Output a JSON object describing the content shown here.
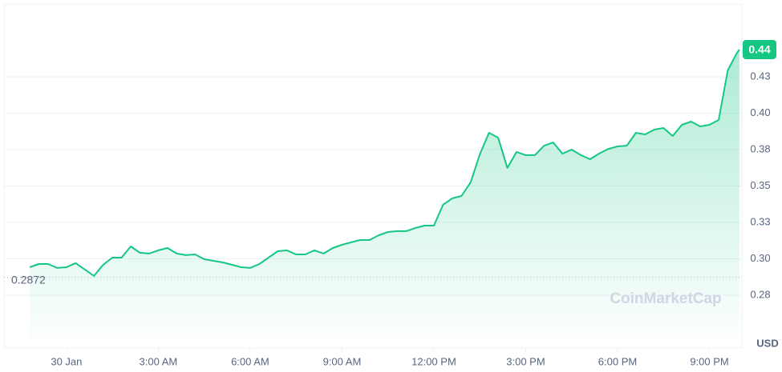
{
  "chart_data": {
    "type": "line",
    "color": "#16c784",
    "down_color": "#ea3943",
    "grid": true,
    "y_axis_label": "USD",
    "watermark": "CoinMarketCap",
    "reference_line": 0.2872,
    "current_price": {
      "value": 0.4437,
      "label": "0.44"
    },
    "xlim": [
      -2.04,
      22.06
    ],
    "ylim": [
      0.2387,
      0.475
    ],
    "xticks": [
      {
        "value": 0,
        "label": "30 Jan"
      },
      {
        "value": 3,
        "label": "3:00 AM"
      },
      {
        "value": 6,
        "label": "6:00 AM"
      },
      {
        "value": 9,
        "label": "9:00 AM"
      },
      {
        "value": 12,
        "label": "12:00 PM"
      },
      {
        "value": 15,
        "label": "3:00 PM"
      },
      {
        "value": 18,
        "label": "6:00 PM"
      },
      {
        "value": 21,
        "label": "9:00 PM"
      }
    ],
    "yticks": [
      {
        "value": 0.275,
        "label": "0.28"
      },
      {
        "value": 0.3,
        "label": "0.30"
      },
      {
        "value": 0.325,
        "label": "0.33"
      },
      {
        "value": 0.35,
        "label": "0.35"
      },
      {
        "value": 0.375,
        "label": "0.38"
      },
      {
        "value": 0.4,
        "label": "0.40"
      },
      {
        "value": 0.425,
        "label": "0.43"
      }
    ],
    "x": [
      -1.2,
      -0.9,
      -0.6,
      -0.3,
      0,
      0.3,
      0.6,
      0.9,
      1.2,
      1.5,
      1.8,
      2.1,
      2.4,
      2.7,
      3,
      3.3,
      3.6,
      3.9,
      4.2,
      4.5,
      4.8,
      5.1,
      5.4,
      5.7,
      6,
      6.3,
      6.6,
      6.9,
      7.2,
      7.5,
      7.8,
      8.1,
      8.4,
      8.7,
      9,
      9.3,
      9.6,
      9.9,
      10.2,
      10.5,
      10.8,
      11.1,
      11.4,
      11.7,
      12,
      12.3,
      12.6,
      12.9,
      13.2,
      13.5,
      13.8,
      14.1,
      14.4,
      14.7,
      15,
      15.3,
      15.6,
      15.9,
      16.2,
      16.5,
      16.8,
      17.1,
      17.4,
      17.7,
      18,
      18.3,
      18.6,
      18.9,
      19.2,
      19.5,
      19.8,
      20.1,
      20.4,
      20.7,
      21,
      21.3,
      21.6,
      21.9,
      21.98
    ],
    "values": [
      0.2942,
      0.2964,
      0.2964,
      0.2937,
      0.2942,
      0.297,
      0.2926,
      0.2882,
      0.2959,
      0.3008,
      0.3008,
      0.3085,
      0.3041,
      0.3036,
      0.3058,
      0.3074,
      0.3036,
      0.3025,
      0.303,
      0.2997,
      0.2986,
      0.2975,
      0.2959,
      0.2942,
      0.2937,
      0.2964,
      0.3008,
      0.3052,
      0.3058,
      0.303,
      0.303,
      0.3058,
      0.3036,
      0.3074,
      0.3096,
      0.3113,
      0.3129,
      0.3129,
      0.3162,
      0.3184,
      0.319,
      0.319,
      0.3212,
      0.3228,
      0.3228,
      0.3371,
      0.3415,
      0.3431,
      0.3525,
      0.3717,
      0.3865,
      0.3832,
      0.3624,
      0.3734,
      0.3712,
      0.3712,
      0.3777,
      0.3799,
      0.3722,
      0.375,
      0.3712,
      0.3684,
      0.3723,
      0.3755,
      0.3772,
      0.3777,
      0.3865,
      0.3854,
      0.3887,
      0.3898,
      0.3843,
      0.392,
      0.3942,
      0.3909,
      0.392,
      0.3953,
      0.4294,
      0.4415,
      0.4437
    ]
  }
}
